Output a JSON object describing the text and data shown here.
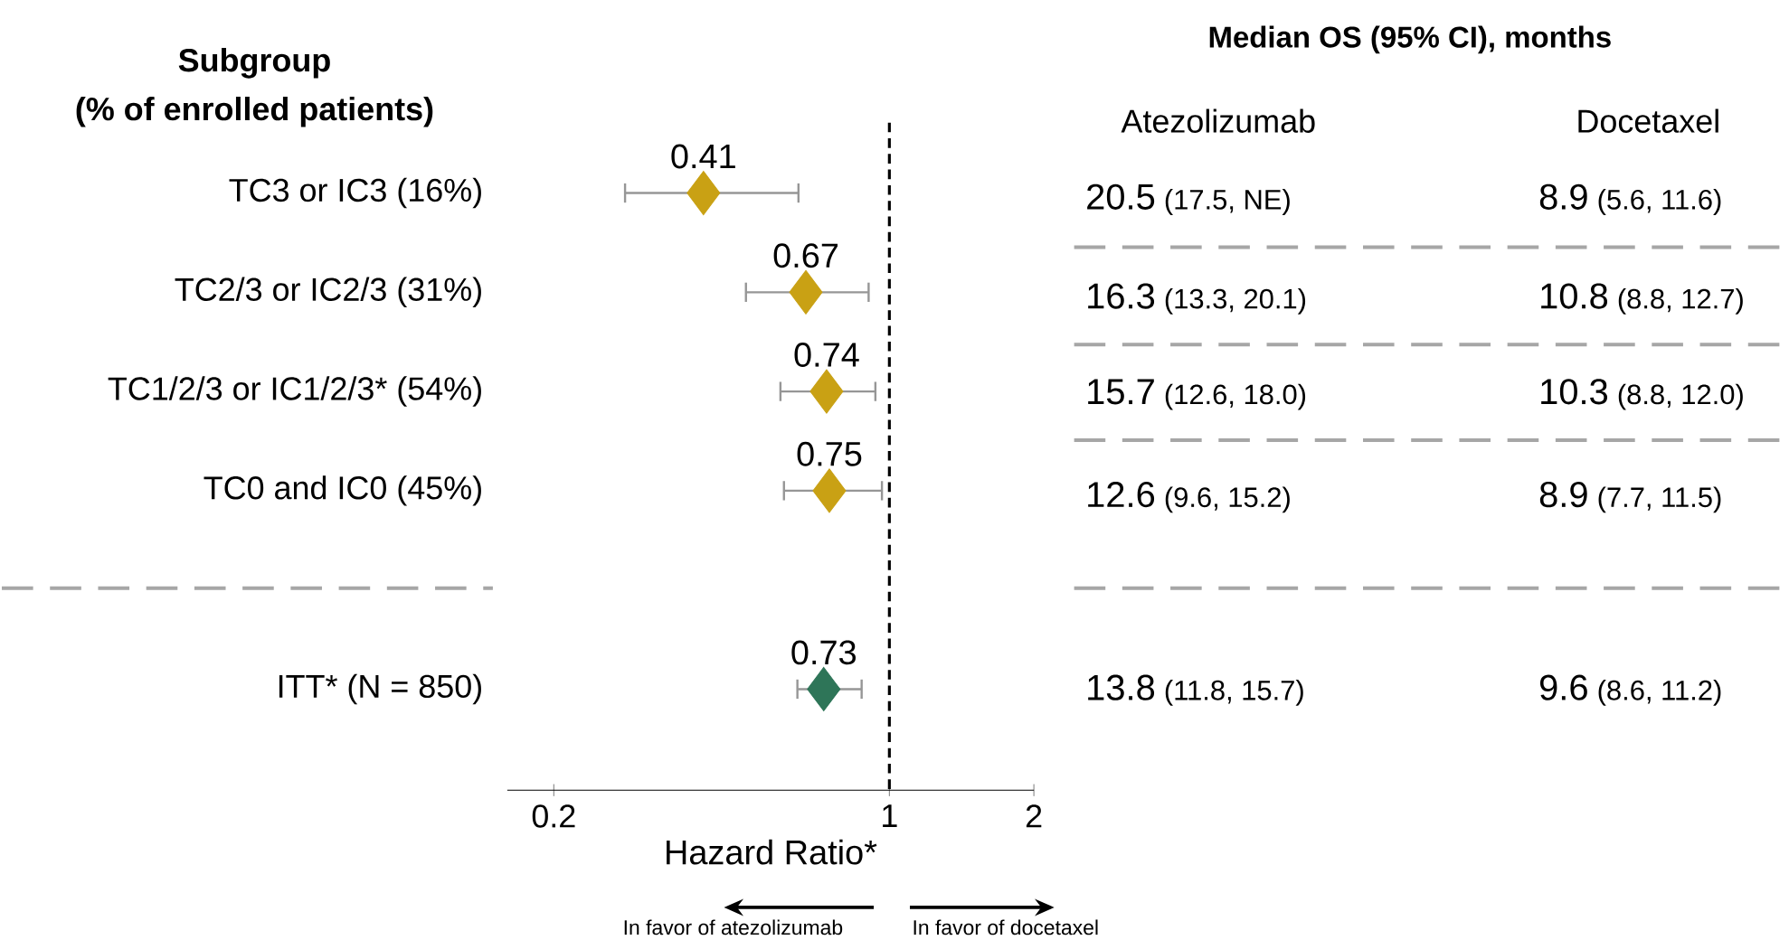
{
  "chart_data": {
    "type": "scatter",
    "orientation": "horizontal",
    "categories": [
      "TC3 or IC3 (16%)",
      "TC2/3 or IC2/3 (31%)",
      "TC1/2/3 or IC1/2/3* (54%)",
      "TC0 and IC0 (45%)",
      null,
      "ITT* (N = 850)"
    ],
    "values": [
      0.41,
      0.67,
      0.74,
      0.75,
      null,
      0.73
    ],
    "errors": [
      [
        0.28,
        0.65
      ],
      [
        0.5,
        0.91
      ],
      [
        0.59,
        0.94
      ],
      [
        0.6,
        0.97
      ],
      null,
      [
        0.64,
        0.88
      ]
    ],
    "colors": [
      "#c9a114",
      "#c9a114",
      "#c9a114",
      "#c9a114",
      null,
      "#2e7558"
    ],
    "xlabel": "Hazard Ratio*",
    "log": "x",
    "xlim": [
      0.16,
      2
    ],
    "xticks": [
      0.2,
      1,
      2
    ],
    "marker": "diamond",
    "data_labels": true,
    "ref_lines": [
      {
        "axis": "x",
        "value": 1,
        "line_style": "dashed",
        "color": "#000000"
      }
    ],
    "annotations": [
      "Subgroup",
      "(% of enrolled patients)",
      "Median OS (95% CI), months",
      "Atezolizumab",
      "Docetaxel",
      "20.5",
      "(17.5, NE)",
      "8.9",
      "(5.6, 11.6)",
      "16.3",
      "(13.3, 20.1)",
      "10.8",
      "(8.8, 12.7)",
      "15.7",
      "(12.6, 18.0)",
      "10.3",
      "(8.8, 12.0)",
      "12.6",
      "(9.6, 15.2)",
      "8.9",
      "(7.7, 11.5)",
      "13.8",
      "(11.8, 15.7)",
      "9.6",
      "(8.6, 11.2)",
      "In favor of atezolizumab",
      "In favor of docetaxel"
    ]
  }
}
